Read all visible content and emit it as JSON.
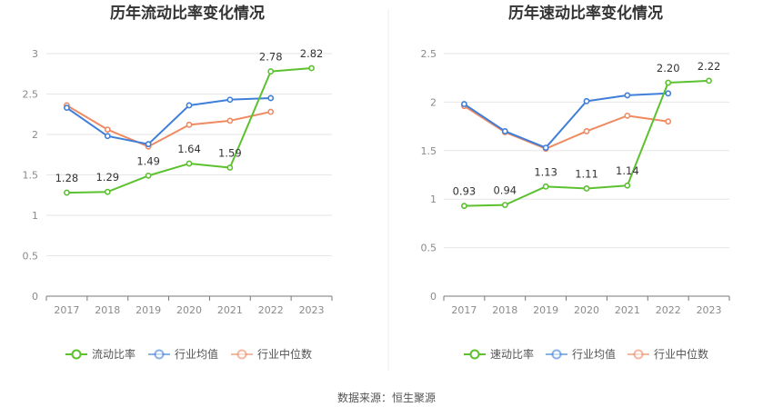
{
  "source_note": "数据来源：恒生聚源",
  "chart_data": [
    {
      "type": "line",
      "title": "历年流动比率变化情况",
      "categories": [
        "2017",
        "2018",
        "2019",
        "2020",
        "2021",
        "2022",
        "2023"
      ],
      "yticks": [
        "0",
        "0.5",
        "1",
        "1.5",
        "2",
        "2.5",
        "3"
      ],
      "ylim": [
        0,
        3
      ],
      "grid": true,
      "legend_position": "bottom",
      "series": [
        {
          "name": "流动比率",
          "color": "#5cc12f",
          "values": [
            1.28,
            1.29,
            1.49,
            1.64,
            1.59,
            2.78,
            2.82
          ],
          "labels": [
            "1.28",
            "1.29",
            "1.49",
            "1.64",
            "1.59",
            "2.78",
            "2.82"
          ]
        },
        {
          "name": "行业均值",
          "color": "#3f7fd9",
          "values": [
            2.33,
            1.98,
            1.88,
            2.36,
            2.43,
            2.45,
            null
          ]
        },
        {
          "name": "行业中位数",
          "color": "#ef8a62",
          "values": [
            2.36,
            2.06,
            1.85,
            2.12,
            2.17,
            2.28,
            null
          ]
        }
      ]
    },
    {
      "type": "line",
      "title": "历年速动比率变化情况",
      "categories": [
        "2017",
        "2018",
        "2019",
        "2020",
        "2021",
        "2022",
        "2023"
      ],
      "yticks": [
        "0",
        "0.5",
        "1",
        "1.5",
        "2",
        "2.5"
      ],
      "ylim": [
        0,
        2.5
      ],
      "grid": true,
      "legend_position": "bottom",
      "series": [
        {
          "name": "速动比率",
          "color": "#5cc12f",
          "values": [
            0.93,
            0.94,
            1.13,
            1.11,
            1.14,
            2.2,
            2.22
          ],
          "labels": [
            "0.93",
            "0.94",
            "1.13",
            "1.11",
            "1.14",
            "2.20",
            "2.22"
          ]
        },
        {
          "name": "行业均值",
          "color": "#3f7fd9",
          "values": [
            1.98,
            1.7,
            1.53,
            2.01,
            2.07,
            2.09,
            null
          ]
        },
        {
          "name": "行业中位数",
          "color": "#ef8a62",
          "values": [
            1.96,
            1.69,
            1.52,
            1.7,
            1.86,
            1.8,
            null
          ]
        }
      ]
    }
  ]
}
